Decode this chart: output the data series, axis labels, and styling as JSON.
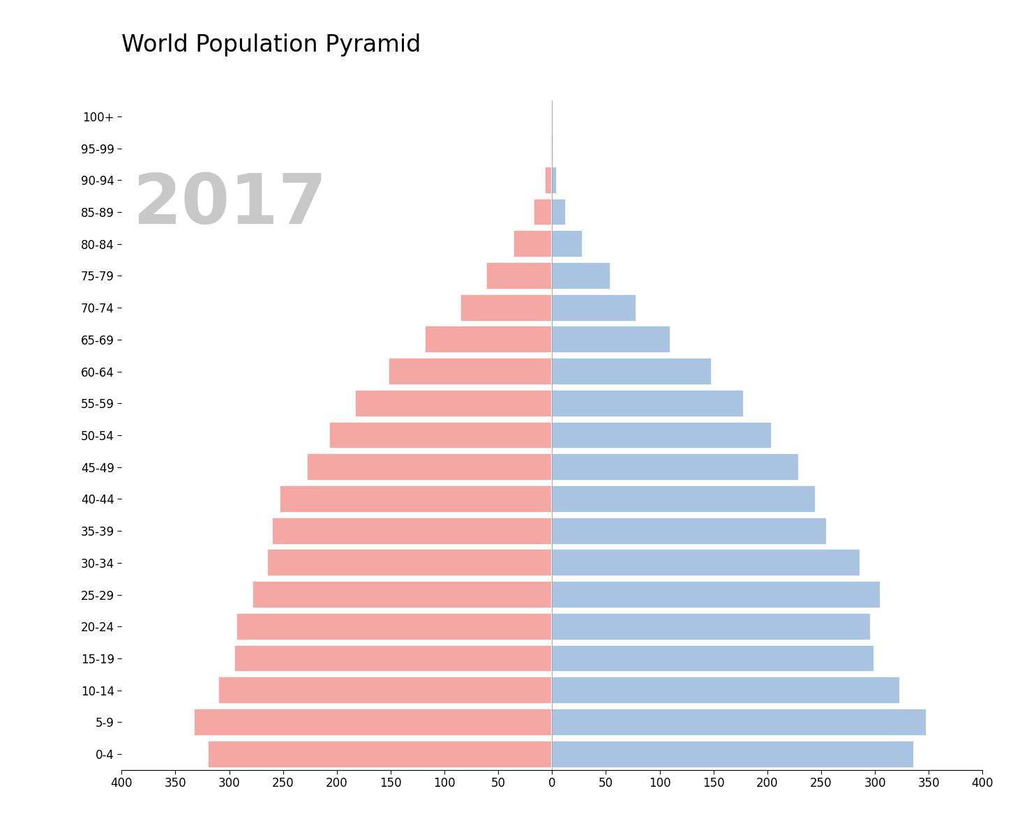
{
  "title": "World Population Pyramid",
  "year_label": "2017",
  "age_groups": [
    "0-4",
    "5-9",
    "10-14",
    "15-19",
    "20-24",
    "25-29",
    "30-34",
    "35-39",
    "40-44",
    "45-49",
    "50-54",
    "55-59",
    "60-64",
    "65-69",
    "70-74",
    "75-79",
    "80-84",
    "85-89",
    "90-94",
    "95-99",
    "100+"
  ],
  "female": [
    320,
    333,
    310,
    295,
    293,
    278,
    265,
    260,
    253,
    228,
    207,
    183,
    152,
    118,
    85,
    61,
    36,
    17,
    6.5,
    1.8,
    0.4
  ],
  "male": [
    336,
    348,
    323,
    299,
    296,
    305,
    286,
    255,
    245,
    229,
    204,
    178,
    148,
    110,
    78,
    54,
    28,
    13,
    4.5,
    1.3,
    0.25
  ],
  "female_color": "#F4A7A3",
  "male_color": "#A8C4E0",
  "background_color": "#ffffff",
  "title_fontsize": 24,
  "year_label_color": "#c8c8c8",
  "year_label_fontsize": 72,
  "xlim": [
    -400,
    400
  ],
  "xticks": [
    -400,
    -350,
    -300,
    -250,
    -200,
    -150,
    -100,
    -50,
    0,
    50,
    100,
    150,
    200,
    250,
    300,
    350,
    400
  ],
  "xticklabels": [
    "400",
    "350",
    "300",
    "250",
    "200",
    "150",
    "100",
    "50",
    "0",
    "50",
    "100",
    "150",
    "200",
    "250",
    "300",
    "350",
    "400"
  ],
  "bar_height": 0.85,
  "edge_color": "white",
  "edge_width": 1.2
}
